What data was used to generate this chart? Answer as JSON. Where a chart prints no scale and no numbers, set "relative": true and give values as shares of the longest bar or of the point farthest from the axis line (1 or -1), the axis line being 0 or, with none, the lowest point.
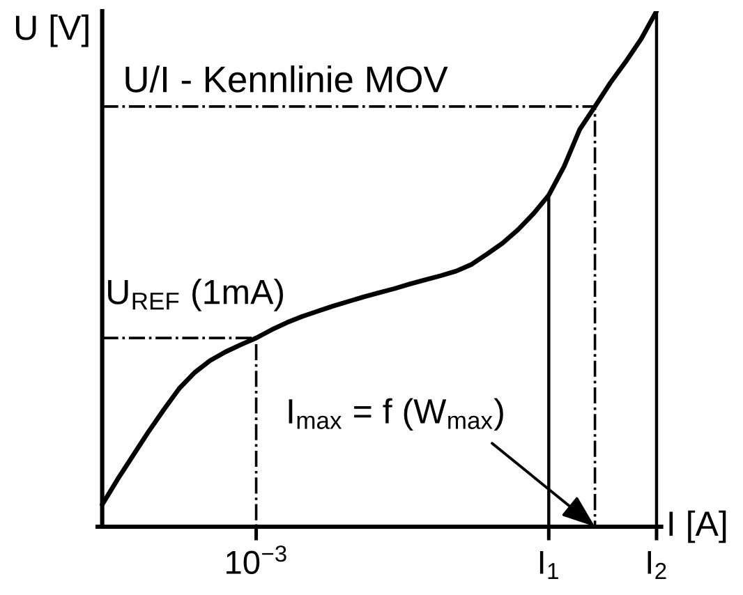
{
  "chart_data": {
    "type": "line",
    "relative": true,
    "title": "U/I - Kennlinie MOV",
    "xlabel": "I [A]",
    "ylabel": "U [V]",
    "tick_labels": "x",
    "line_style": "solid",
    "categories": [
      null,
      null,
      null,
      null,
      null,
      null,
      null,
      null,
      null,
      null,
      "10$^{−3}$",
      null,
      null,
      null,
      null,
      null,
      null,
      null,
      null,
      null,
      null,
      null,
      null,
      null,
      null,
      null,
      null,
      null,
      null,
      "I$_{1}$",
      null,
      null,
      null,
      null,
      null,
      null,
      "I$_{2}$"
    ],
    "series": [
      {
        "color": "#000000",
        "values": [
          0.043,
          0.092,
          0.138,
          0.184,
          0.227,
          0.268,
          0.299,
          0.322,
          0.339,
          0.353,
          0.366,
          0.382,
          0.396,
          0.408,
          0.418,
          0.428,
          0.437,
          0.446,
          0.454,
          0.462,
          0.471,
          0.479,
          0.487,
          0.496,
          0.509,
          0.529,
          0.55,
          0.576,
          0.607,
          0.643,
          0.699,
          0.77,
          0.815,
          0.861,
          0.902,
          0.946,
          1.0
        ]
      },
      {
        "type": "step",
        "color": "#000000",
        "line_style": "dashdot",
        "values": [
          0.366,
          0.366,
          0.366,
          0.366,
          0.366,
          0.366,
          0.366,
          0.366,
          0.366,
          0.366,
          0,
          null,
          null,
          null,
          null,
          null,
          null,
          null,
          null,
          null,
          null,
          null,
          null,
          null,
          null,
          null,
          null,
          null,
          null,
          null,
          null,
          null,
          null,
          null,
          null,
          null,
          null
        ]
      },
      {
        "type": "step",
        "color": "#000000",
        "line_style": "dashdot",
        "values": [
          0.815,
          0.815,
          0.815,
          0.815,
          0.815,
          0.815,
          0.815,
          0.815,
          0.815,
          0.815,
          0.815,
          0.815,
          0.815,
          0.815,
          0.815,
          0.815,
          0.815,
          0.815,
          0.815,
          0.815,
          0.815,
          0.815,
          0.815,
          0.815,
          0.815,
          0.815,
          0.815,
          0.815,
          0.815,
          0.815,
          0.815,
          0.815,
          0,
          null,
          null,
          null,
          null
        ]
      },
      {
        "type": "bar",
        "color": "#000000",
        "values": [
          null,
          null,
          null,
          null,
          null,
          null,
          null,
          null,
          null,
          null,
          null,
          null,
          null,
          null,
          null,
          null,
          null,
          null,
          null,
          null,
          null,
          null,
          null,
          null,
          null,
          null,
          null,
          null,
          null,
          0.643,
          null,
          null,
          null,
          null,
          null,
          null,
          1.0
        ]
      }
    ],
    "annotations": [
      {
        "text": "U$_{REF}$ (1mA)",
        "x": "10$^{−3}$",
        "y": 0.366
      },
      "I$_{max}$ = f (W$_{max}$)"
    ]
  }
}
